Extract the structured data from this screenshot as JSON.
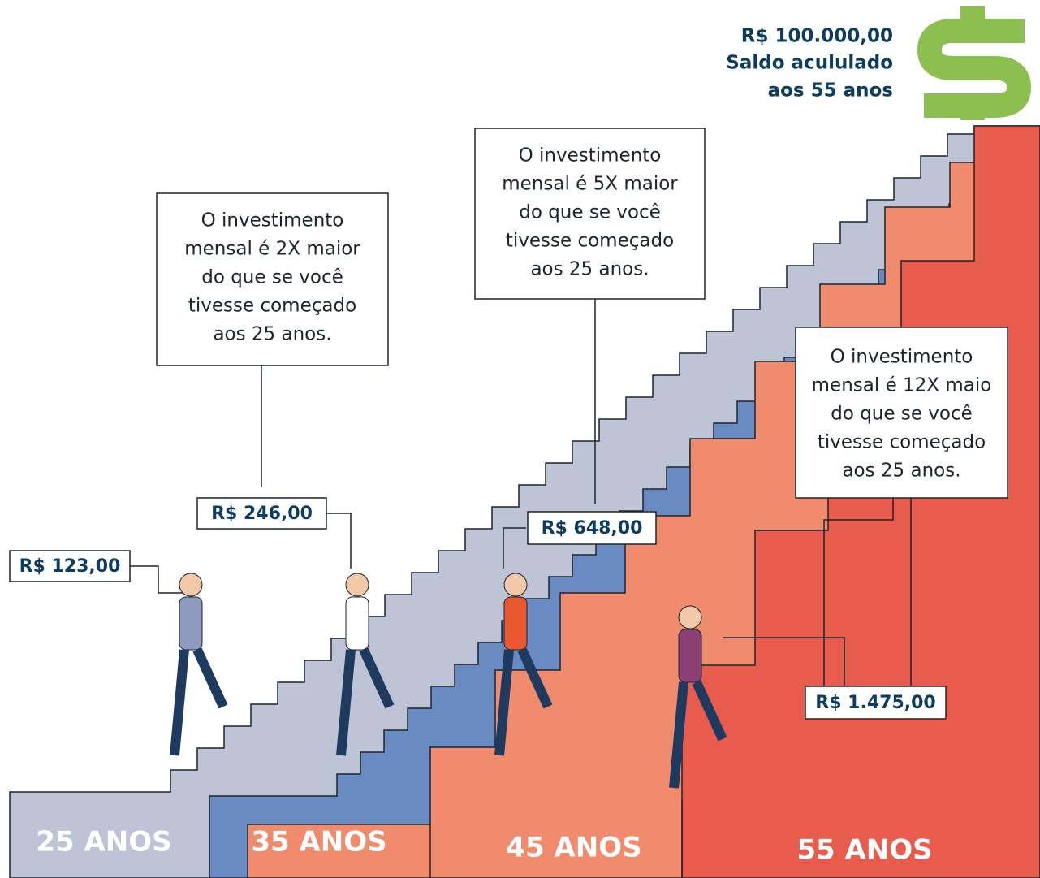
{
  "goal": {
    "amount": "R$ 100.000,00",
    "line1": "Saldo acululado",
    "line2": "aos 55 anos"
  },
  "callouts": [
    {
      "lines": [
        "O investimento",
        "mensal é 2X maior",
        "do que se você",
        "tivesse começado",
        "aos 25 anos."
      ]
    },
    {
      "lines": [
        "O investimento",
        "mensal é 5X maior",
        "do que se você",
        "tivesse começado",
        "aos 25 anos."
      ]
    },
    {
      "lines": [
        "O investimento",
        "mensal é 12X maio",
        "do que se você",
        "tivesse começado",
        "aos 25 anos."
      ]
    }
  ],
  "amounts": [
    "R$ 123,00",
    "R$ 246,00",
    "R$ 648,00",
    "R$ 1.475,00"
  ],
  "ages": [
    "25 ANOS",
    "35 ANOS",
    "45 ANOS",
    "55 ANOS"
  ]
}
